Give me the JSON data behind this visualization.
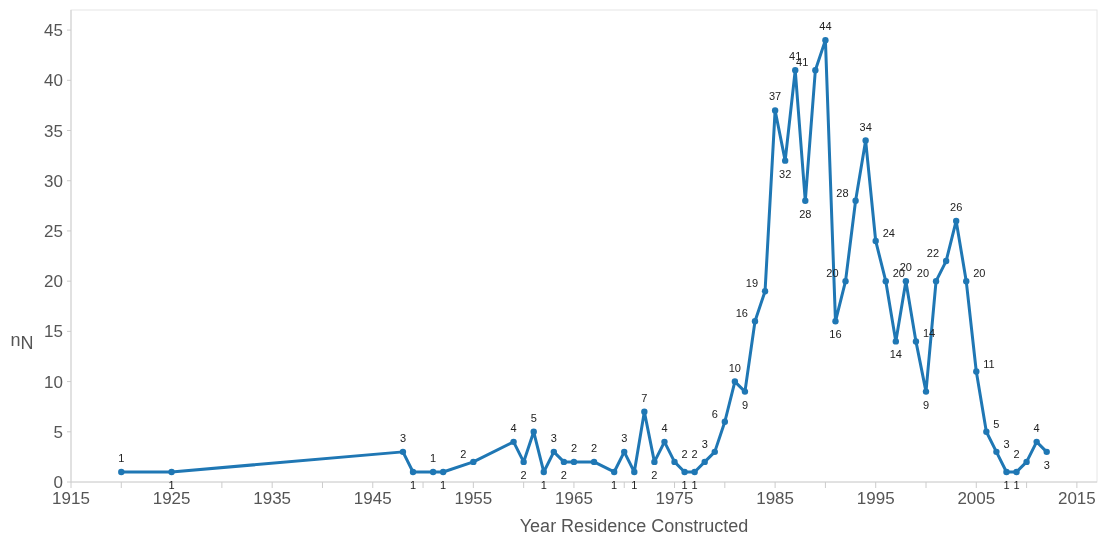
{
  "chart_data": {
    "type": "line",
    "xlabel": "Year Residence Constructed",
    "ylabel": "Nu",
    "x": [
      1920,
      1925,
      1948,
      1949,
      1951,
      1952,
      1955,
      1959,
      1960,
      1961,
      1962,
      1963,
      1964,
      1965,
      1967,
      1969,
      1970,
      1971,
      1972,
      1973,
      1974,
      1975,
      1976,
      1977,
      1978,
      1979,
      1980,
      1981,
      1982,
      1983,
      1984,
      1985,
      1986,
      1987,
      1988,
      1989,
      1990,
      1991,
      1992,
      1993,
      1994,
      1995,
      1996,
      1997,
      1998,
      1999,
      2000,
      2001,
      2002,
      2003,
      2004,
      2005,
      2006,
      2007,
      2008,
      2009,
      2010,
      2011,
      2012
    ],
    "series": [
      {
        "color": "#1f77b4",
        "values": [
          1,
          1,
          3,
          1,
          1,
          1,
          2,
          4,
          2,
          5,
          1,
          3,
          2,
          2,
          2,
          1,
          3,
          1,
          7,
          2,
          4,
          2,
          1,
          1,
          2,
          3,
          6,
          10,
          9,
          16,
          19,
          37,
          32,
          41,
          28,
          41,
          44,
          16,
          20,
          28,
          34,
          24,
          20,
          14,
          20,
          14,
          9,
          20,
          22,
          26,
          20,
          11,
          5,
          3,
          1,
          1,
          2,
          4,
          3
        ]
      }
    ],
    "xlim": [
      1915,
      2017
    ],
    "ylim": [
      0,
      47
    ],
    "xticks": [
      1915,
      {
        "value": 1920,
        "label": null
      },
      1925,
      {
        "value": 1930,
        "label": null
      },
      1935,
      {
        "value": 1940,
        "label": null
      },
      1945,
      {
        "value": 1950,
        "label": null
      },
      1955,
      {
        "value": 1960,
        "label": null
      },
      1965,
      {
        "value": 1970,
        "label": null
      },
      1975,
      {
        "value": 1980,
        "label": null
      },
      1985,
      {
        "value": 1990,
        "label": null
      },
      1995,
      {
        "value": 2000,
        "label": null
      },
      2005,
      {
        "value": 2010,
        "label": null
      },
      2015
    ],
    "yticks": [
      0,
      5,
      10,
      15,
      20,
      25,
      30,
      35,
      40,
      45
    ],
    "marker": "circle",
    "line_style": "solid",
    "data_labels": true,
    "grid": false
  }
}
